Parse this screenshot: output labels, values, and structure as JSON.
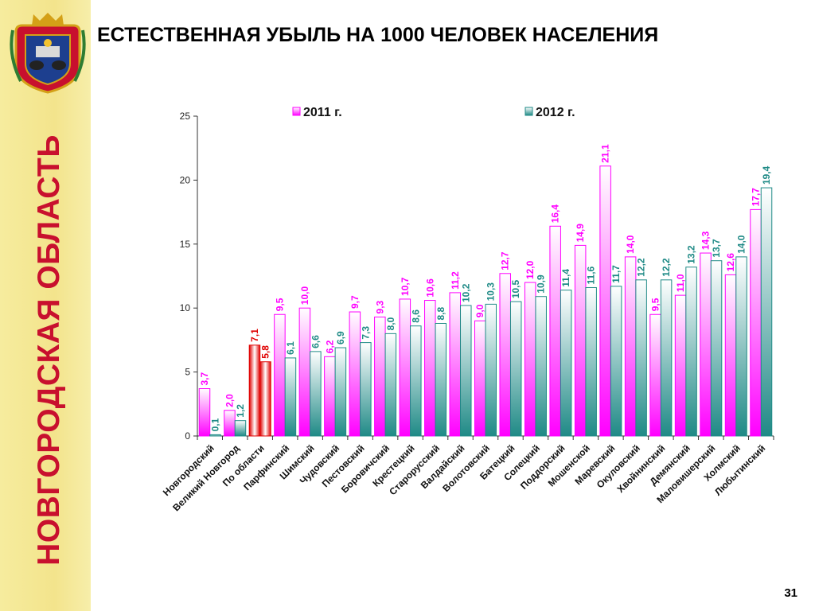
{
  "title": "ЕСТЕСТВЕННАЯ УБЫЛЬ НА 1000 ЧЕЛОВЕК НАСЕЛЕНИЯ",
  "sidebar_text": "НОВГОРОДСКАЯ ОБЛАСТЬ",
  "page_number": "31",
  "chart_data": {
    "type": "bar",
    "title": "",
    "xlabel": "",
    "ylabel": "",
    "ylim": [
      0,
      25
    ],
    "yticks": [
      "0",
      "5",
      "10",
      "15",
      "20",
      "25"
    ],
    "legend_position": "top",
    "categories": [
      "Новгородский",
      "Великий Новгород",
      "По области",
      "Парфинский",
      "Шимский",
      "Чудовский",
      "Пестовский",
      "Боровичский",
      "Крестецкий",
      "Старорусский",
      "Валдайский",
      "Волотовский",
      "Батецкий",
      "Солецкий",
      "Поддорский",
      "Мошенской",
      "Маревский",
      "Окуловский",
      "Хвойнинский",
      "Демянский",
      "Маловишерский",
      "Холмский",
      "Любытинский"
    ],
    "series": [
      {
        "name": "2011 г.",
        "color": "#ff00ff",
        "values": [
          3.7,
          2.0,
          7.1,
          9.5,
          10.0,
          6.2,
          9.7,
          9.3,
          10.7,
          10.6,
          11.2,
          9.0,
          12.7,
          12.0,
          16.4,
          14.9,
          21.1,
          14.0,
          9.5,
          11.0,
          14.3,
          12.6,
          17.7
        ],
        "labels": [
          "3,7",
          "2,0",
          "7,1",
          "9,5",
          "10,0",
          "6,2",
          "9,7",
          "9,3",
          "10,7",
          "10,6",
          "11,2",
          "9,0",
          "12,7",
          "12,0",
          "16,4",
          "14,9",
          "21,1",
          "14,0",
          "9,5",
          "11,0",
          "14,3",
          "12,6",
          "17,7"
        ]
      },
      {
        "name": "2012 г.",
        "color": "#1f8a86",
        "values": [
          0.1,
          1.2,
          5.8,
          6.1,
          6.6,
          6.9,
          7.3,
          8.0,
          8.6,
          8.8,
          10.2,
          10.3,
          10.5,
          10.9,
          11.4,
          11.6,
          11.7,
          12.2,
          12.2,
          13.2,
          13.7,
          14.0,
          19.4
        ],
        "labels": [
          "0,1",
          "1,2",
          "5,8",
          "6,1",
          "6,6",
          "6,9",
          "7,3",
          "8,0",
          "8,6",
          "8,8",
          "10,2",
          "10,3",
          "10,5",
          "10,9",
          "11,4",
          "11,6",
          "11,7",
          "12,2",
          "12,2",
          "13,2",
          "13,7",
          "14,0",
          "19,4"
        ]
      }
    ],
    "highlight_category": "По области",
    "highlight_color": "#e00000"
  }
}
